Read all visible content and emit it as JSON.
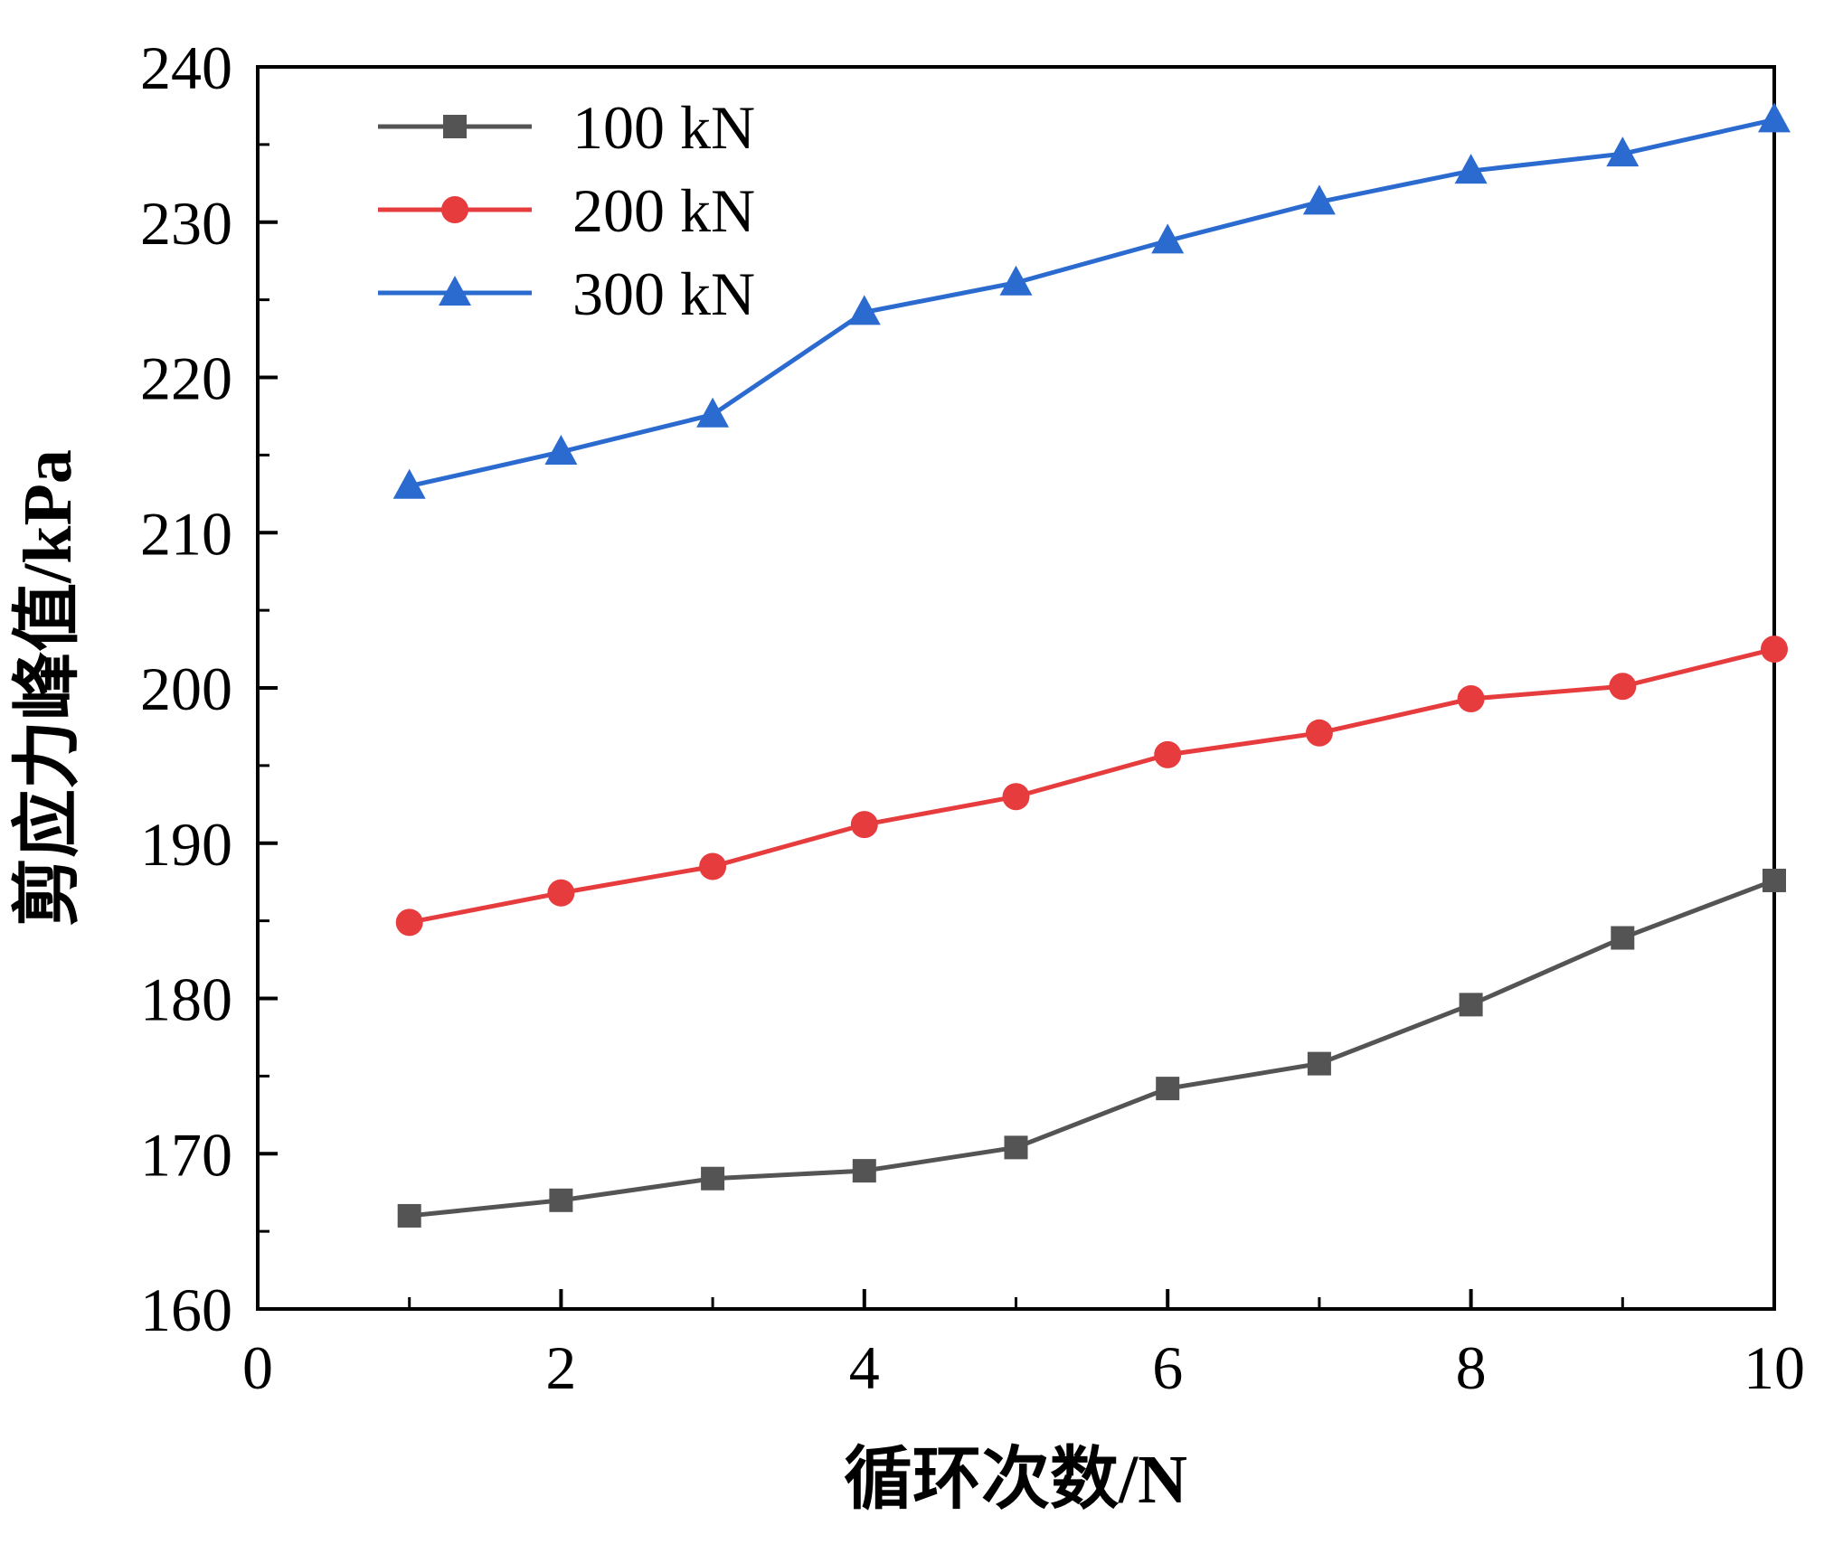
{
  "chart_data": {
    "type": "line",
    "title": "",
    "xlabel": "循环次数/N",
    "ylabel": "剪应力峰值/kPa",
    "x": [
      1,
      2,
      3,
      4,
      5,
      6,
      7,
      8,
      9,
      10
    ],
    "series": [
      {
        "name": "100 kN",
        "color": "#545454",
        "marker": "square",
        "values": [
          166.0,
          167.0,
          168.4,
          168.9,
          170.4,
          174.2,
          175.8,
          179.6,
          183.9,
          187.6
        ]
      },
      {
        "name": "200 kN",
        "color": "#e73c3e",
        "marker": "circle",
        "values": [
          184.9,
          186.8,
          188.5,
          191.2,
          193.0,
          195.7,
          197.1,
          199.3,
          200.1,
          202.5
        ]
      },
      {
        "name": "300 kN",
        "color": "#2b6bd0",
        "marker": "triangle",
        "values": [
          213.0,
          215.2,
          217.6,
          224.2,
          226.1,
          228.8,
          231.3,
          233.3,
          234.4,
          236.6
        ]
      }
    ],
    "xlim": [
      0,
      10
    ],
    "ylim": [
      160,
      240
    ],
    "xticks": [
      0,
      2,
      4,
      6,
      8,
      10
    ],
    "yticks": [
      160,
      170,
      180,
      190,
      200,
      210,
      220,
      230,
      240
    ],
    "x_minor_ticks": [
      1,
      3,
      5,
      7,
      9
    ],
    "y_minor_ticks": [
      165,
      175,
      185,
      195,
      205,
      215,
      225,
      235
    ],
    "legend_position": "top-left",
    "grid": false,
    "axis_color": "#000000",
    "background_color": "#ffffff"
  }
}
